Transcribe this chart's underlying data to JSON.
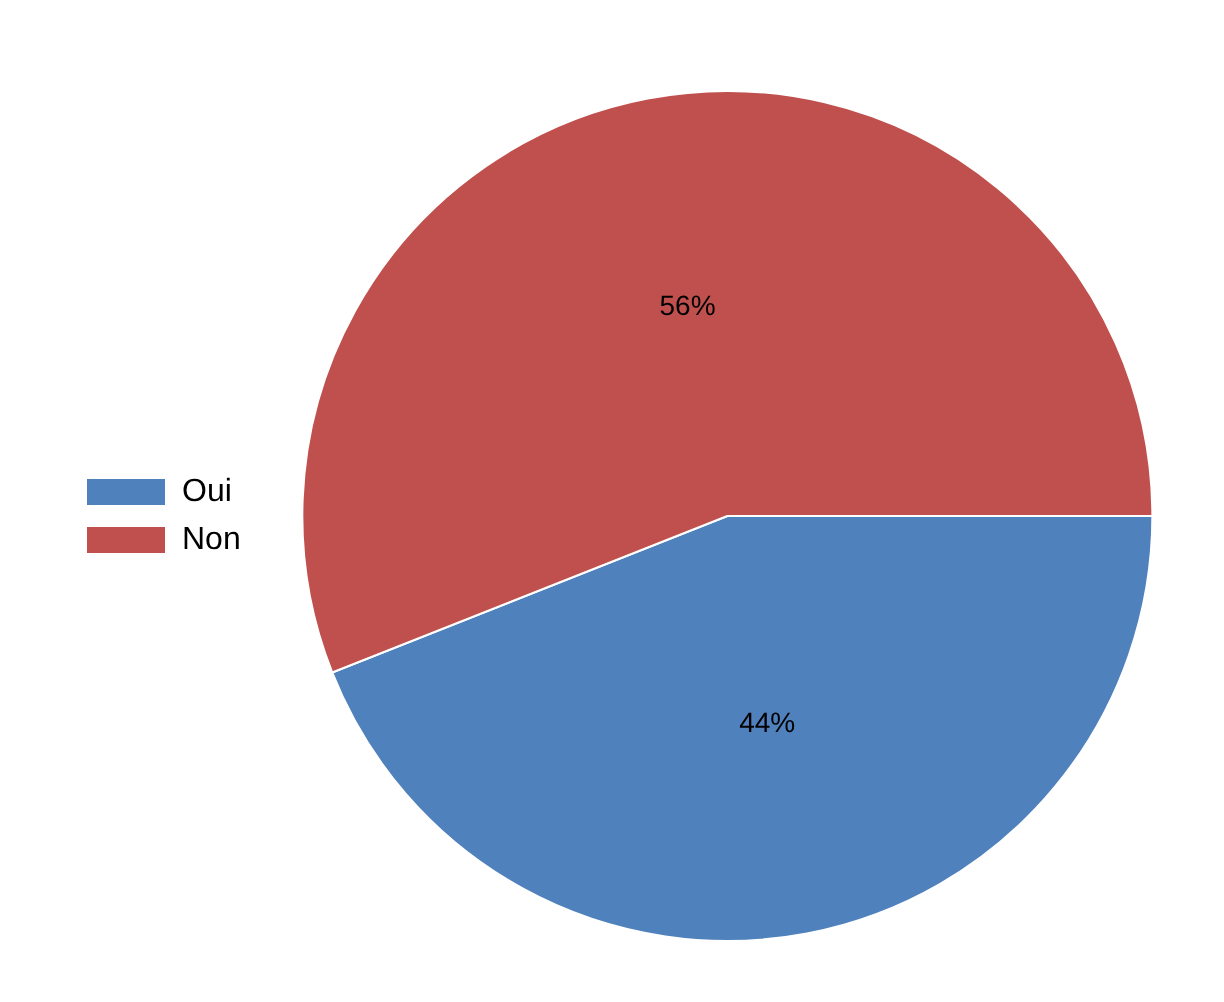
{
  "chart_data": {
    "type": "pie",
    "categories": [
      "Oui",
      "Non"
    ],
    "values": [
      44,
      56
    ],
    "colors": [
      "#4f81bd",
      "#c0504d"
    ],
    "value_labels": [
      "44%",
      "56%"
    ],
    "legend": "left"
  }
}
